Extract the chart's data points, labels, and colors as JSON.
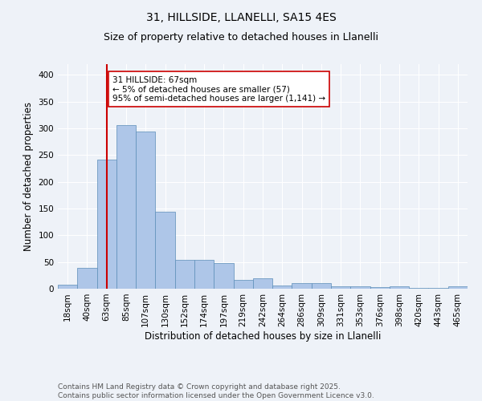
{
  "title_line1": "31, HILLSIDE, LLANELLI, SA15 4ES",
  "title_line2": "Size of property relative to detached houses in Llanelli",
  "xlabel": "Distribution of detached houses by size in Llanelli",
  "ylabel": "Number of detached properties",
  "categories": [
    "18sqm",
    "40sqm",
    "63sqm",
    "85sqm",
    "107sqm",
    "130sqm",
    "152sqm",
    "174sqm",
    "197sqm",
    "219sqm",
    "242sqm",
    "264sqm",
    "286sqm",
    "309sqm",
    "331sqm",
    "353sqm",
    "376sqm",
    "398sqm",
    "420sqm",
    "443sqm",
    "465sqm"
  ],
  "values": [
    8,
    39,
    241,
    306,
    294,
    144,
    54,
    54,
    48,
    17,
    19,
    6,
    11,
    11,
    4,
    4,
    3,
    4,
    1,
    1,
    4
  ],
  "bar_color": "#aec6e8",
  "bar_edge_color": "#5b8db8",
  "red_line_index": 2,
  "red_line_color": "#cc0000",
  "annotation_line1": "31 HILLSIDE: 67sqm",
  "annotation_line2": "← 5% of detached houses are smaller (57)",
  "annotation_line3": "95% of semi-detached houses are larger (1,141) →",
  "annotation_box_color": "#ffffff",
  "annotation_box_edge": "#cc0000",
  "ylim": [
    0,
    420
  ],
  "yticks": [
    0,
    50,
    100,
    150,
    200,
    250,
    300,
    350,
    400
  ],
  "footer_line1": "Contains HM Land Registry data © Crown copyright and database right 2025.",
  "footer_line2": "Contains public sector information licensed under the Open Government Licence v3.0.",
  "background_color": "#eef2f8",
  "grid_color": "#ffffff",
  "title_fontsize": 10,
  "subtitle_fontsize": 9,
  "axis_label_fontsize": 8.5,
  "tick_fontsize": 7.5,
  "annotation_fontsize": 7.5,
  "footer_fontsize": 6.5
}
